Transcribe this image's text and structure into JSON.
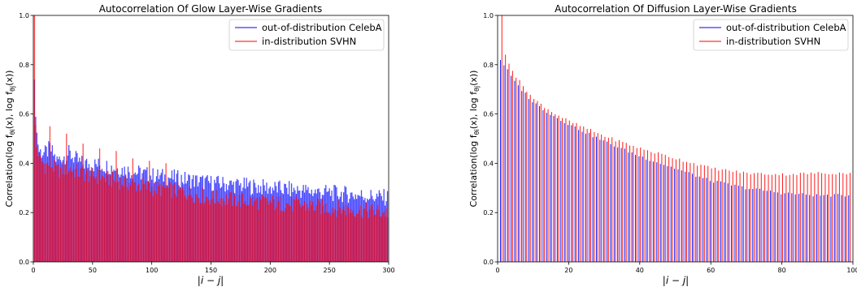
{
  "chart_data": [
    {
      "type": "bar",
      "title": "Autocorrelation Of Glow Layer-Wise Gradients",
      "xlabel": "|i − j|",
      "ylabel": "Correlation(log f",
      "ylabel_sub": "θi",
      "ylabel_mid": "(x), log f",
      "ylabel_sub2": "θj",
      "ylabel_end": "(x))",
      "xlim": [
        0,
        300
      ],
      "ylim": [
        0.0,
        1.0
      ],
      "xticks": [
        0,
        50,
        100,
        150,
        200,
        250,
        300
      ],
      "yticks": [
        0.0,
        0.2,
        0.4,
        0.6,
        0.8,
        1.0
      ],
      "legend_placement": "top-right",
      "series": [
        {
          "name": "out-of-distribution CelebA",
          "color": "#0000ff",
          "keypoints": [
            [
              0,
              1.0
            ],
            [
              1,
              0.71
            ],
            [
              2,
              0.62
            ],
            [
              3,
              0.52
            ],
            [
              5,
              0.45
            ],
            [
              10,
              0.44
            ],
            [
              14,
              0.46
            ],
            [
              20,
              0.41
            ],
            [
              30,
              0.44
            ],
            [
              40,
              0.4
            ],
            [
              60,
              0.39
            ],
            [
              80,
              0.37
            ],
            [
              100,
              0.35
            ],
            [
              120,
              0.34
            ],
            [
              150,
              0.32
            ],
            [
              200,
              0.3
            ],
            [
              250,
              0.28
            ],
            [
              300,
              0.26
            ]
          ]
        },
        {
          "name": "in-distribution SVHN",
          "color": "#ff0000",
          "keypoints": [
            [
              0,
              1.0
            ],
            [
              1,
              0.65
            ],
            [
              2,
              0.55
            ],
            [
              3,
              0.47
            ],
            [
              5,
              0.42
            ],
            [
              10,
              0.39
            ],
            [
              14,
              0.4
            ],
            [
              20,
              0.37
            ],
            [
              30,
              0.38
            ],
            [
              40,
              0.36
            ],
            [
              60,
              0.34
            ],
            [
              80,
              0.32
            ],
            [
              100,
              0.3
            ],
            [
              120,
              0.29
            ],
            [
              150,
              0.26
            ],
            [
              200,
              0.24
            ],
            [
              250,
              0.22
            ],
            [
              300,
              0.2
            ]
          ],
          "spikes": [
            [
              1,
              1.0
            ],
            [
              14,
              0.55
            ],
            [
              28,
              0.52
            ],
            [
              42,
              0.48
            ],
            [
              56,
              0.46
            ],
            [
              70,
              0.45
            ],
            [
              84,
              0.42
            ],
            [
              98,
              0.41
            ],
            [
              112,
              0.4
            ]
          ]
        }
      ]
    },
    {
      "type": "bar",
      "title": "Autocorrelation Of Diffusion Layer-Wise Gradients",
      "xlabel": "|i − j|",
      "ylabel": "Correlation(log f",
      "ylabel_sub": "θi",
      "ylabel_mid": "(x), log f",
      "ylabel_sub2": "θj",
      "ylabel_end": "(x))",
      "xlim": [
        0,
        100
      ],
      "ylim": [
        0.0,
        1.0
      ],
      "xticks": [
        0,
        20,
        40,
        60,
        80,
        100
      ],
      "yticks": [
        0.0,
        0.2,
        0.4,
        0.6,
        0.8,
        1.0
      ],
      "legend_placement": "top-right",
      "series": [
        {
          "name": "out-of-distribution CelebA",
          "color": "#0000ff",
          "keypoints": [
            [
              1,
              0.82
            ],
            [
              2,
              0.8
            ],
            [
              5,
              0.73
            ],
            [
              10,
              0.65
            ],
            [
              15,
              0.6
            ],
            [
              20,
              0.56
            ],
            [
              30,
              0.49
            ],
            [
              40,
              0.43
            ],
            [
              50,
              0.38
            ],
            [
              60,
              0.33
            ],
            [
              70,
              0.3
            ],
            [
              80,
              0.28
            ],
            [
              90,
              0.27
            ],
            [
              99,
              0.27
            ]
          ]
        },
        {
          "name": "in-distribution SVHN",
          "color": "#ff0000",
          "keypoints": [
            [
              1,
              1.0
            ],
            [
              2,
              0.84
            ],
            [
              5,
              0.75
            ],
            [
              10,
              0.66
            ],
            [
              15,
              0.61
            ],
            [
              20,
              0.57
            ],
            [
              30,
              0.51
            ],
            [
              40,
              0.46
            ],
            [
              50,
              0.42
            ],
            [
              60,
              0.38
            ],
            [
              70,
              0.36
            ],
            [
              80,
              0.355
            ],
            [
              90,
              0.36
            ],
            [
              99,
              0.36
            ]
          ]
        }
      ]
    }
  ]
}
